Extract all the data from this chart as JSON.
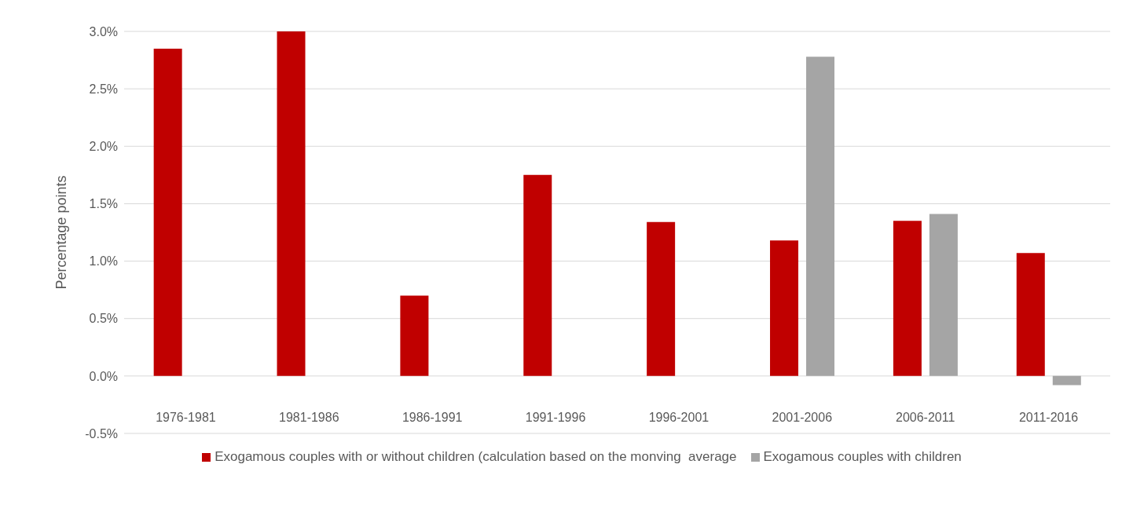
{
  "chart_data": {
    "type": "bar",
    "ylabel": "Percentage points",
    "categories": [
      "1976-1981",
      "1981-1986",
      "1986-1991",
      "1991-1996",
      "1996-2001",
      "2001-2006",
      "2006-2011",
      "2011-2016"
    ],
    "series": [
      {
        "name": "Exogamous couples with or without children (calculation based on the monving  average",
        "color": "#c00000",
        "values": [
          2.85,
          3.0,
          0.7,
          1.75,
          1.34,
          1.18,
          1.35,
          1.07
        ]
      },
      {
        "name": "Exogamous couples with children",
        "color": "#a5a5a5",
        "values": [
          null,
          null,
          null,
          null,
          null,
          2.78,
          1.41,
          -0.08
        ]
      }
    ],
    "ylim": [
      -0.5,
      3.0
    ],
    "yticks": [
      {
        "value": -0.5,
        "label": "-0.5%"
      },
      {
        "value": 0,
        "label": "0.0%"
      },
      {
        "value": 0.5,
        "label": "0.5%"
      },
      {
        "value": 1,
        "label": "1.0%"
      },
      {
        "value": 1.5,
        "label": "1.5%"
      },
      {
        "value": 2,
        "label": "2.0%"
      },
      {
        "value": 2.5,
        "label": "2.5%"
      },
      {
        "value": 3,
        "label": "3.0%"
      }
    ],
    "grid": "y",
    "legend": "bottom"
  }
}
